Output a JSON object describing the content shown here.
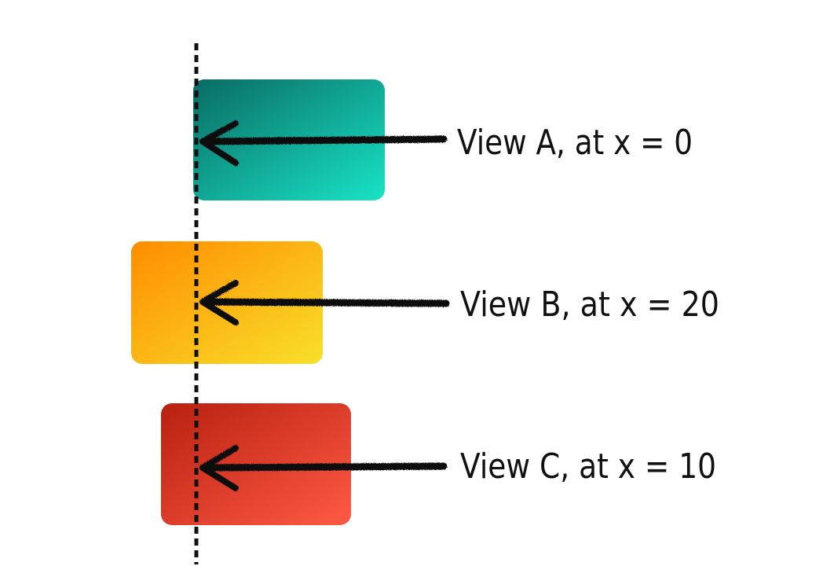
{
  "colors": {
    "view_a": [
      "#0a6b63",
      "#18e3c6"
    ],
    "view_b": [
      "#ff8c00",
      "#f8e02a"
    ],
    "view_c": [
      "#b8200f",
      "#ff5a45"
    ],
    "guide_line": "#111111",
    "arrow": "#111111"
  },
  "views": [
    {
      "id": "a",
      "label": "View A, at x = 0"
    },
    {
      "id": "b",
      "label": "View B, at x = 20"
    },
    {
      "id": "c",
      "label": "View C, at x = 10"
    }
  ]
}
